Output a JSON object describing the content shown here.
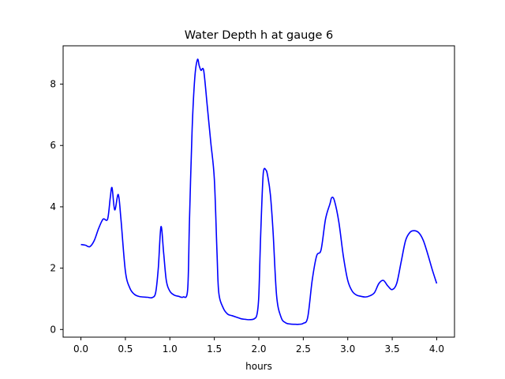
{
  "chart_data": {
    "type": "line",
    "title": "Water Depth h at gauge 6",
    "xlabel": "hours",
    "ylabel": "",
    "xlim": [
      -0.2,
      4.2
    ],
    "ylim": [
      -0.25,
      9.25
    ],
    "grid": false,
    "x_ticks": [
      0.0,
      0.5,
      1.0,
      1.5,
      2.0,
      2.5,
      3.0,
      3.5,
      4.0
    ],
    "x_tick_labels": [
      "0.0",
      "0.5",
      "1.0",
      "1.5",
      "2.0",
      "2.5",
      "3.0",
      "3.5",
      "4.0"
    ],
    "y_ticks": [
      0,
      2,
      4,
      6,
      8
    ],
    "y_tick_labels": [
      "0",
      "2",
      "4",
      "6",
      "8"
    ],
    "series": [
      {
        "color": "#0000ff",
        "x": [
          0.0,
          0.05,
          0.1,
          0.15,
          0.2,
          0.25,
          0.3,
          0.33,
          0.35,
          0.38,
          0.42,
          0.45,
          0.5,
          0.55,
          0.6,
          0.65,
          0.7,
          0.75,
          0.8,
          0.84,
          0.87,
          0.9,
          0.93,
          0.96,
          1.0,
          1.05,
          1.1,
          1.15,
          1.2,
          1.22,
          1.25,
          1.28,
          1.31,
          1.33,
          1.35,
          1.38,
          1.42,
          1.46,
          1.5,
          1.53,
          1.55,
          1.6,
          1.65,
          1.7,
          1.75,
          1.8,
          1.85,
          1.9,
          1.95,
          1.98,
          2.0,
          2.02,
          2.05,
          2.08,
          2.1,
          2.13,
          2.16,
          2.2,
          2.25,
          2.3,
          2.35,
          2.4,
          2.45,
          2.5,
          2.55,
          2.6,
          2.65,
          2.7,
          2.75,
          2.8,
          2.82,
          2.85,
          2.9,
          2.95,
          3.0,
          3.05,
          3.1,
          3.15,
          3.2,
          3.25,
          3.3,
          3.35,
          3.4,
          3.45,
          3.5,
          3.55,
          3.6,
          3.65,
          3.7,
          3.75,
          3.8,
          3.85,
          3.9,
          3.95,
          4.0
        ],
        "y": [
          2.77,
          2.75,
          2.7,
          2.9,
          3.3,
          3.6,
          3.6,
          4.3,
          4.62,
          3.9,
          4.4,
          3.6,
          1.9,
          1.35,
          1.15,
          1.08,
          1.06,
          1.05,
          1.04,
          1.2,
          2.0,
          3.35,
          2.5,
          1.6,
          1.25,
          1.12,
          1.08,
          1.06,
          1.3,
          3.5,
          6.5,
          8.2,
          8.8,
          8.6,
          8.45,
          8.45,
          7.3,
          6.1,
          4.9,
          2.5,
          1.2,
          0.7,
          0.5,
          0.45,
          0.4,
          0.35,
          0.33,
          0.32,
          0.35,
          0.5,
          1.1,
          3.0,
          5.1,
          5.2,
          5.0,
          4.4,
          3.2,
          1.1,
          0.4,
          0.22,
          0.18,
          0.17,
          0.17,
          0.2,
          0.4,
          1.6,
          2.4,
          2.6,
          3.6,
          4.1,
          4.3,
          4.2,
          3.5,
          2.4,
          1.6,
          1.25,
          1.12,
          1.08,
          1.06,
          1.1,
          1.2,
          1.5,
          1.6,
          1.42,
          1.3,
          1.5,
          2.2,
          2.9,
          3.17,
          3.22,
          3.15,
          2.9,
          2.45,
          1.95,
          1.5
        ]
      }
    ]
  }
}
